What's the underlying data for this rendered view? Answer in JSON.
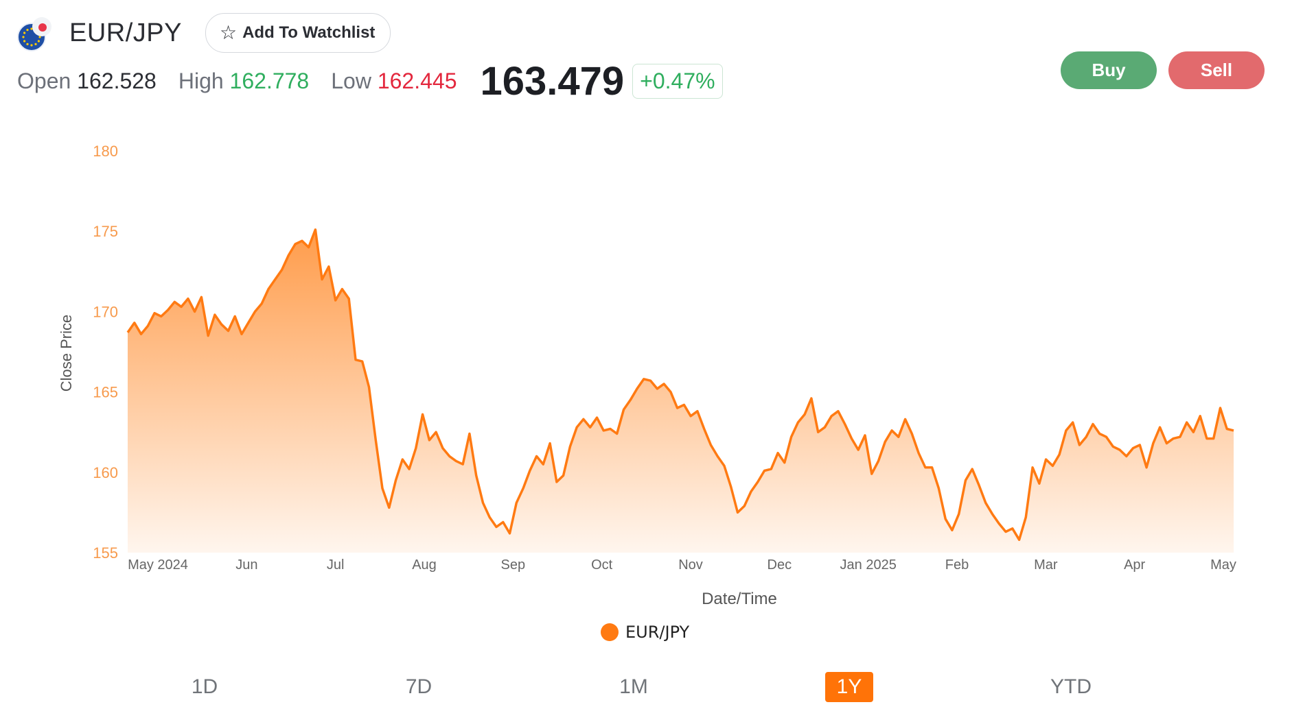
{
  "header": {
    "pair": "EUR/JPY",
    "watchlist_label": "Add To Watchlist",
    "base_flag": "eu-flag-icon",
    "quote_flag": "japan-flag-icon"
  },
  "stats": {
    "open_label": "Open",
    "open_value": "162.528",
    "high_label": "High",
    "high_value": "162.778",
    "low_label": "Low",
    "low_value": "162.445",
    "last_price": "163.479",
    "change": "+0.47%"
  },
  "actions": {
    "buy_label": "Buy",
    "sell_label": "Sell"
  },
  "colors": {
    "accent": "#ff7a12",
    "buy": "#5aaa74",
    "sell": "#e26a6d",
    "up": "#2fae5e",
    "down": "#e3273d"
  },
  "chart_data": {
    "type": "area",
    "xlabel": "Date/Time",
    "ylabel": "Close Price",
    "ylim": [
      155,
      180
    ],
    "yticks": [
      155,
      160,
      165,
      170,
      175,
      180
    ],
    "xticks": [
      "May 2024",
      "Jun",
      "Jul",
      "Aug",
      "Sep",
      "Oct",
      "Nov",
      "Dec",
      "Jan 2025",
      "Feb",
      "Mar",
      "Apr",
      "May"
    ],
    "legend_position": "bottom-center",
    "grid": false,
    "series": [
      {
        "name": "EUR/JPY",
        "color": "#ff7a12",
        "values": [
          168.7,
          169.3,
          168.6,
          169.1,
          169.9,
          169.7,
          170.1,
          170.6,
          170.3,
          170.8,
          170.0,
          170.9,
          168.5,
          169.8,
          169.2,
          168.8,
          169.7,
          168.6,
          169.3,
          170.0,
          170.5,
          171.4,
          172.0,
          172.6,
          173.5,
          174.2,
          174.4,
          174.0,
          175.1,
          172.0,
          172.8,
          170.7,
          171.4,
          170.8,
          167.0,
          166.9,
          165.3,
          162.0,
          159.0,
          157.8,
          159.5,
          160.8,
          160.2,
          161.5,
          163.6,
          162.0,
          162.5,
          161.5,
          161.0,
          160.7,
          160.5,
          162.4,
          159.8,
          158.1,
          157.2,
          156.6,
          156.9,
          156.2,
          158.1,
          159.0,
          160.1,
          161.0,
          160.5,
          161.8,
          159.4,
          159.8,
          161.6,
          162.8,
          163.3,
          162.8,
          163.4,
          162.6,
          162.7,
          162.4,
          163.9,
          164.5,
          165.2,
          165.8,
          165.7,
          165.2,
          165.5,
          165.0,
          164.0,
          164.2,
          163.5,
          163.8,
          162.7,
          161.7,
          161.0,
          160.4,
          159.1,
          157.5,
          157.9,
          158.8,
          159.4,
          160.1,
          160.2,
          161.2,
          160.6,
          162.2,
          163.1,
          163.6,
          164.6,
          162.5,
          162.8,
          163.5,
          163.8,
          163.0,
          162.1,
          161.4,
          162.3,
          159.9,
          160.7,
          161.9,
          162.6,
          162.2,
          163.3,
          162.4,
          161.2,
          160.3,
          160.3,
          159.0,
          157.1,
          156.4,
          157.4,
          159.5,
          160.2,
          159.2,
          158.1,
          157.4,
          156.8,
          156.3,
          156.5,
          155.8,
          157.2,
          160.3,
          159.3,
          160.8,
          160.4,
          161.1,
          162.6,
          163.1,
          161.7,
          162.2,
          163.0,
          162.4,
          162.2,
          161.6,
          161.4,
          161.0,
          161.5,
          161.7,
          160.3,
          161.8,
          162.8,
          161.8,
          162.1,
          162.2,
          163.1,
          162.5,
          163.5,
          162.1,
          162.1,
          164.0,
          162.7,
          162.6
        ]
      }
    ]
  },
  "legend": {
    "label": "EUR/JPY"
  },
  "ranges": [
    {
      "label": "1D",
      "active": false
    },
    {
      "label": "7D",
      "active": false
    },
    {
      "label": "1M",
      "active": false
    },
    {
      "label": "1Y",
      "active": true
    },
    {
      "label": "YTD",
      "active": false
    }
  ]
}
